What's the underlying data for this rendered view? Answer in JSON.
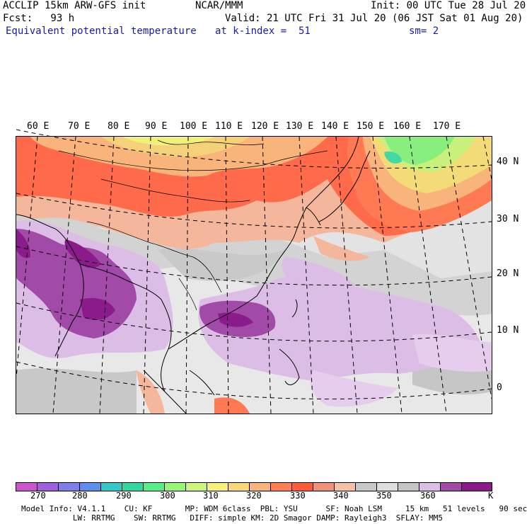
{
  "header": {
    "line1_left": "ACCLIP 15km ARW-GFS init",
    "line1_center": "NCAR/MMM",
    "line1_right": "Init: 00 UTC Tue 28 Jul 20",
    "line2_left": "Fcst:   93 h",
    "line2_right": "Valid: 21 UTC Fri 31 Jul 20 (06 JST Sat 01 Aug 20)",
    "line3_left": "Equivalent potential temperature",
    "line3_center": "at k-index =  51",
    "line3_right": "sm= 2"
  },
  "map": {
    "lon_labels": [
      "60 E",
      "70 E",
      "80 E",
      "90 E",
      "100 E",
      "110 E",
      "120 E",
      "130 E",
      "140 E",
      "150 E",
      "160 E",
      "170 E"
    ],
    "lat_labels": [
      "40 N",
      "30 N",
      "20 N",
      "10 N",
      "0"
    ]
  },
  "colorbar": {
    "colors": [
      "#cc55cc",
      "#a060dd",
      "#7f7fe8",
      "#5f8fee",
      "#33c8c8",
      "#33d8a0",
      "#55ee88",
      "#99f577",
      "#ccf57a",
      "#f5f07a",
      "#f8d87a",
      "#f8b47a",
      "#ff7f50",
      "#ff5a3c",
      "#f09178",
      "#f7c1a5",
      "#c8c8c8",
      "#dedede",
      "#c5c5c5",
      "#dcbfe8",
      "#a24aa8",
      "#8b1a8b"
    ],
    "labels": [
      "270",
      "280",
      "290",
      "300",
      "310",
      "320",
      "330",
      "340",
      "350",
      "360"
    ],
    "unit": "K"
  },
  "footer": {
    "line1": "Model Info: V4.1.1    CU: KF       MP: WDM 6class  PBL: YSU      SF: Noah LSM     15 km   51 levels   90 sec",
    "line2": "           LW: RRTMG    SW: RRTMG   DIFF: simple KM: 2D Smagor DAMP: Rayleigh3  SFLAY: MM5"
  }
}
